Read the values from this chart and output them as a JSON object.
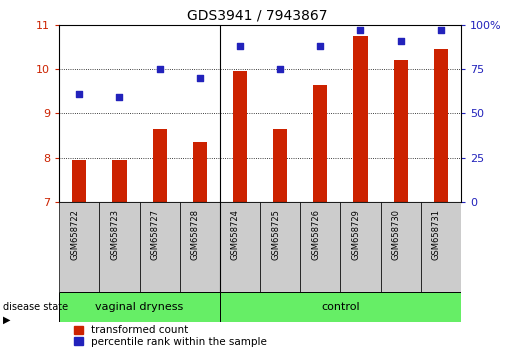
{
  "title": "GDS3941 / 7943867",
  "samples": [
    "GSM658722",
    "GSM658723",
    "GSM658727",
    "GSM658728",
    "GSM658724",
    "GSM658725",
    "GSM658726",
    "GSM658729",
    "GSM658730",
    "GSM658731"
  ],
  "red_values": [
    7.95,
    7.95,
    8.65,
    8.35,
    9.95,
    8.65,
    9.65,
    10.75,
    10.2,
    10.45
  ],
  "blue_values_pct": [
    61,
    59,
    75,
    70,
    88,
    75,
    88,
    97,
    91,
    97
  ],
  "ylim_left": [
    7,
    11
  ],
  "ylim_right": [
    0,
    100
  ],
  "yticks_left": [
    7,
    8,
    9,
    10,
    11
  ],
  "yticks_right": [
    0,
    25,
    50,
    75,
    100
  ],
  "red_color": "#cc2200",
  "blue_color": "#2222bb",
  "bar_width": 0.35,
  "label_red": "transformed count",
  "label_blue": "percentile rank within the sample",
  "disease_state_label": "disease state",
  "group_divider": 3,
  "group1_label": "vaginal dryness",
  "group2_label": "control",
  "group_color": "#66ee66",
  "sample_box_color": "#cccccc"
}
